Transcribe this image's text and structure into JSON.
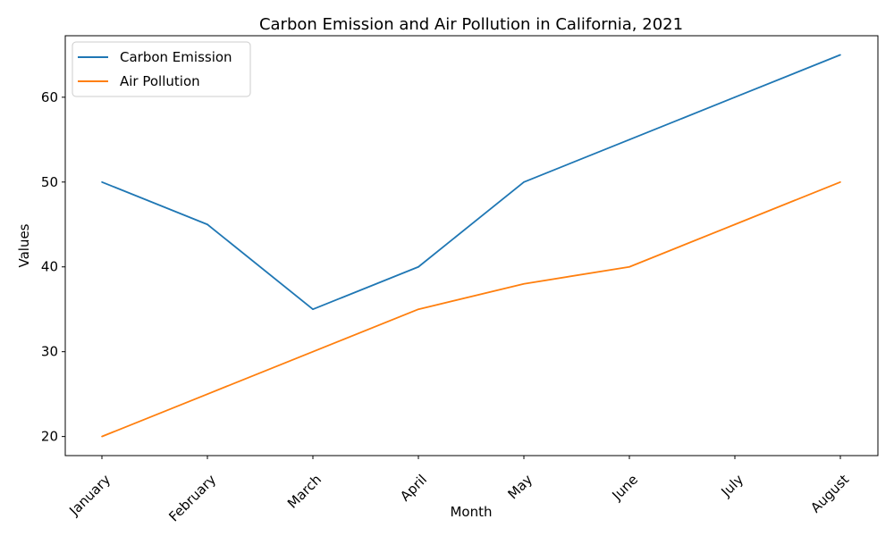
{
  "chart_data": {
    "type": "line",
    "title": "Carbon Emission and Air Pollution in California, 2021",
    "xlabel": "Month",
    "ylabel": "Values",
    "categories": [
      "January",
      "February",
      "March",
      "April",
      "May",
      "June",
      "July",
      "August"
    ],
    "series": [
      {
        "name": "Carbon Emission",
        "color": "#1f77b4",
        "values": [
          50,
          45,
          35,
          40,
          50,
          55,
          60,
          65
        ]
      },
      {
        "name": "Air Pollution",
        "color": "#ff7f0e",
        "values": [
          20,
          25,
          30,
          35,
          38,
          40,
          45,
          50
        ]
      }
    ],
    "ylim": [
      17.75,
      67.25
    ],
    "yticks": [
      20,
      30,
      40,
      50,
      60
    ],
    "grid": false,
    "legend_position": "top-left"
  }
}
